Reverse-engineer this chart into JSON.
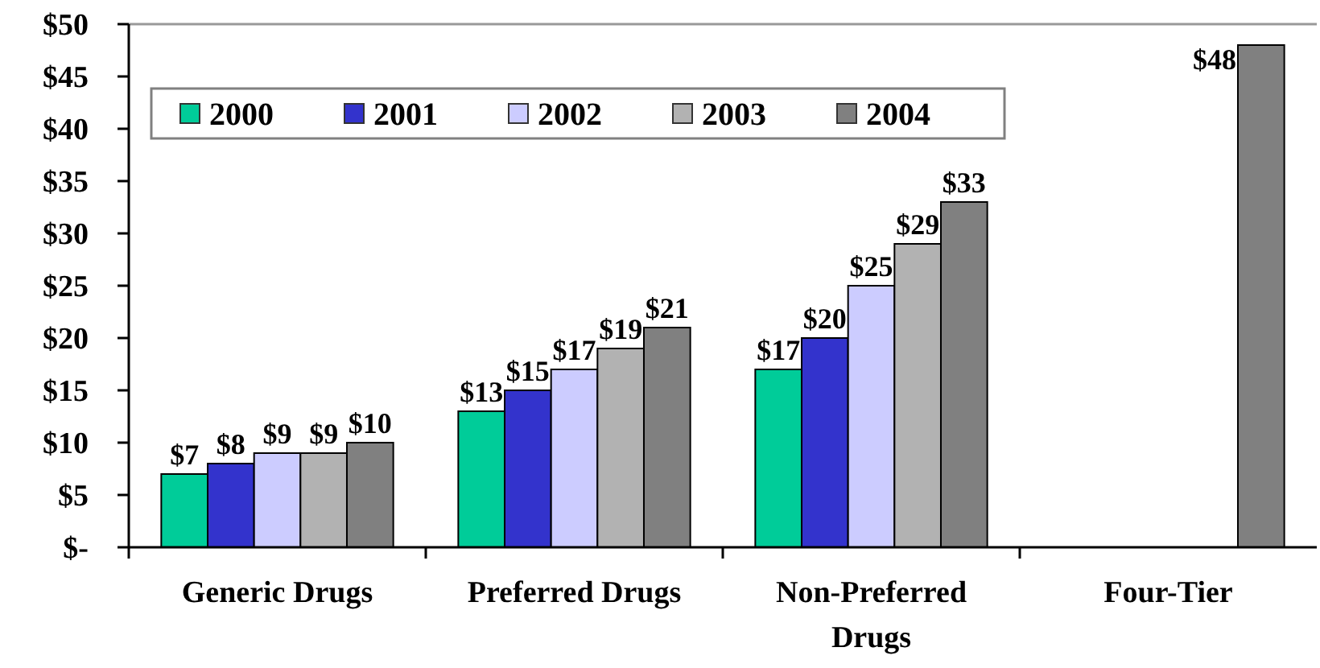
{
  "chart_data": {
    "type": "bar",
    "categories": [
      "Generic Drugs",
      "Preferred Drugs",
      "Non-Preferred Drugs",
      "Four-Tier"
    ],
    "series": [
      {
        "name": "2000",
        "color": "#00cc99",
        "values": [
          7,
          13,
          17,
          null
        ],
        "value_labels": [
          "$7",
          "$13",
          "$17",
          null
        ]
      },
      {
        "name": "2001",
        "color": "#3333cc",
        "values": [
          8,
          15,
          20,
          null
        ],
        "value_labels": [
          "$8",
          "$15",
          "$20",
          null
        ]
      },
      {
        "name": "2002",
        "color": "#ccccff",
        "values": [
          9,
          17,
          25,
          null
        ],
        "value_labels": [
          "$9",
          "$17",
          "$25",
          null
        ]
      },
      {
        "name": "2003",
        "color": "#b2b2b2",
        "values": [
          9,
          19,
          29,
          null
        ],
        "value_labels": [
          "$9",
          "$19",
          "$29",
          null
        ]
      },
      {
        "name": "2004",
        "color": "#808080",
        "values": [
          10,
          21,
          33,
          48
        ],
        "value_labels": [
          "$10",
          "$21",
          "$33",
          "$48"
        ]
      }
    ],
    "ylim": [
      0,
      50
    ],
    "yticks": [
      {
        "value": 0,
        "label": "$-"
      },
      {
        "value": 5,
        "label": "$5"
      },
      {
        "value": 10,
        "label": "$10"
      },
      {
        "value": 15,
        "label": "$15"
      },
      {
        "value": 20,
        "label": "$20"
      },
      {
        "value": 25,
        "label": "$25"
      },
      {
        "value": 30,
        "label": "$30"
      },
      {
        "value": 35,
        "label": "$35"
      },
      {
        "value": 40,
        "label": "$40"
      },
      {
        "value": 45,
        "label": "$45"
      },
      {
        "value": 50,
        "label": "$50"
      }
    ],
    "legend": "top left",
    "grid": false
  }
}
